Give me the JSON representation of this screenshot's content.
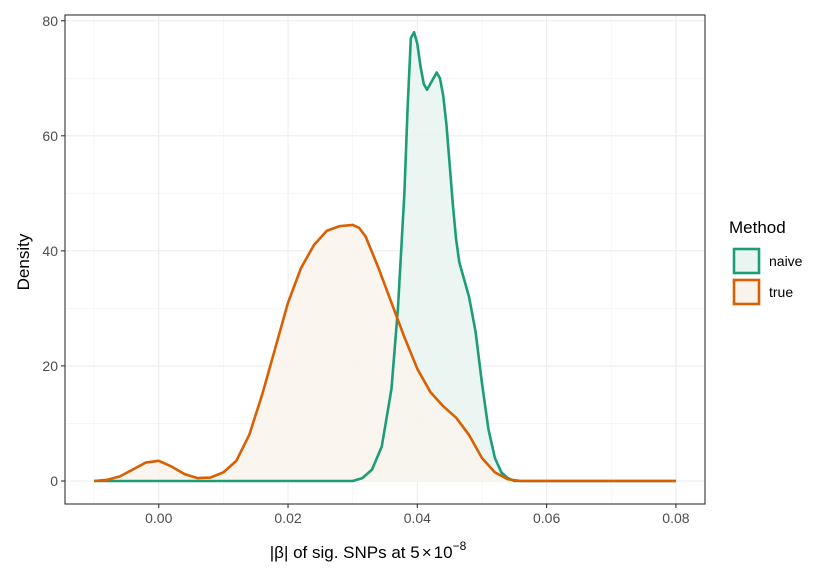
{
  "chart_data": {
    "type": "area",
    "title": "",
    "xlabel": {
      "prefix": "|β| of sig. SNPs at  5",
      "times": "×",
      "base": "10",
      "exponent": "−8"
    },
    "ylabel": "Density",
    "xlim": [
      -0.0145,
      0.0845
    ],
    "ylim": [
      -4,
      81
    ],
    "x_ticks": [
      0.0,
      0.02,
      0.04,
      0.06,
      0.08
    ],
    "x_tick_labels": [
      "0.00",
      "0.02",
      "0.04",
      "0.06",
      "0.08"
    ],
    "y_ticks": [
      0,
      20,
      40,
      60,
      80
    ],
    "y_tick_labels": [
      "0",
      "20",
      "40",
      "60",
      "80"
    ],
    "grid": true,
    "legend": {
      "title": "Method",
      "position": "right"
    },
    "series": [
      {
        "name": "naive",
        "color": "#1b9e77",
        "fill": "#e8f5f1",
        "x": [
          -0.01,
          0.03,
          0.0315,
          0.033,
          0.0345,
          0.036,
          0.037,
          0.038,
          0.0385,
          0.039,
          0.0395,
          0.04,
          0.0405,
          0.041,
          0.0415,
          0.042,
          0.0425,
          0.043,
          0.0435,
          0.044,
          0.0445,
          0.045,
          0.0455,
          0.046,
          0.0465,
          0.047,
          0.048,
          0.049,
          0.05,
          0.051,
          0.052,
          0.053,
          0.054,
          0.055,
          0.06,
          0.08
        ],
        "y": [
          0,
          0,
          0.5,
          2,
          6,
          16,
          30,
          50,
          65,
          77,
          78,
          76,
          72,
          69,
          68,
          69,
          70,
          71,
          70,
          67,
          62,
          55,
          48,
          42,
          38,
          36,
          32,
          26,
          17,
          9,
          4,
          1.5,
          0.5,
          0,
          0,
          0
        ]
      },
      {
        "name": "true",
        "color": "#d95f02",
        "fill": "#faf3ec",
        "x": [
          -0.01,
          -0.008,
          -0.006,
          -0.004,
          -0.002,
          0.0,
          0.002,
          0.004,
          0.006,
          0.008,
          0.01,
          0.012,
          0.014,
          0.016,
          0.018,
          0.02,
          0.022,
          0.024,
          0.026,
          0.028,
          0.03,
          0.031,
          0.032,
          0.034,
          0.036,
          0.038,
          0.04,
          0.042,
          0.044,
          0.046,
          0.048,
          0.05,
          0.052,
          0.054,
          0.056,
          0.06,
          0.08
        ],
        "y": [
          0,
          0.2,
          0.8,
          2,
          3.2,
          3.5,
          2.5,
          1.2,
          0.5,
          0.6,
          1.5,
          3.5,
          8,
          15,
          23,
          31,
          37,
          41,
          43.5,
          44.3,
          44.5,
          44,
          42.5,
          37,
          31,
          25,
          19.5,
          15.5,
          13,
          11,
          8,
          4,
          1.5,
          0.3,
          0,
          0,
          0
        ]
      }
    ]
  }
}
